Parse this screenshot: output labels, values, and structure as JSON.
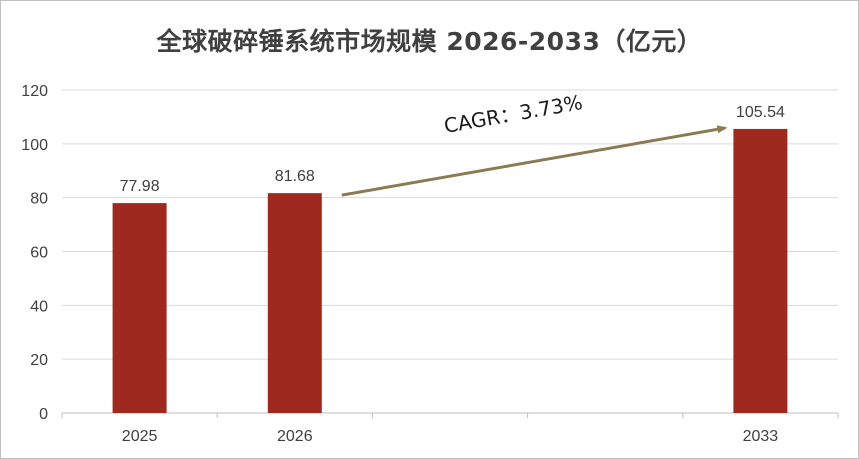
{
  "chart_data": {
    "type": "bar",
    "title": "全球破碎锤系统市场规模 2026-2033（亿元）",
    "categories": [
      "2025",
      "2026",
      "",
      "",
      "2033"
    ],
    "values": [
      77.98,
      81.68,
      null,
      null,
      105.54
    ],
    "data_labels": [
      "77.98",
      "81.68",
      "",
      "",
      "105.54"
    ],
    "ylim": [
      0,
      120
    ],
    "yticks": [
      0,
      20,
      40,
      60,
      80,
      100,
      120
    ],
    "grid": true,
    "bar_color": "#9e2a1f",
    "annotation": {
      "text": "CAGR：3.73%",
      "arrow_from": {
        "category": "2026",
        "value": 81.68
      },
      "arrow_to": {
        "category": "2033",
        "value": 105.54
      },
      "arrow_color": "#8b7a52"
    }
  }
}
